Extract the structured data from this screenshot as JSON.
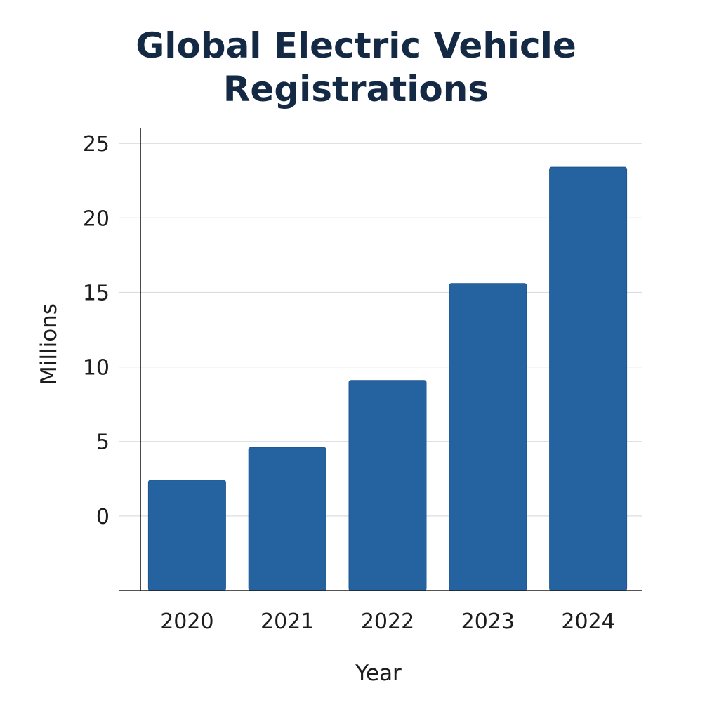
{
  "chart_data": {
    "type": "bar",
    "title": "Global Electric Vehicle Registrations",
    "xlabel": "Year",
    "ylabel": "Millions",
    "categories": [
      "2020",
      "2021",
      "2022",
      "2023",
      "2024"
    ],
    "values": [
      2.4,
      4.6,
      9.1,
      15.6,
      23.4
    ],
    "ylim": [
      -5,
      26
    ],
    "yticks": [
      0,
      5,
      10,
      15,
      20,
      25
    ],
    "grid": true,
    "bar_color": "#2563a0",
    "grid_color": "#d9dde2",
    "axis_color": "#1c1c1c"
  }
}
